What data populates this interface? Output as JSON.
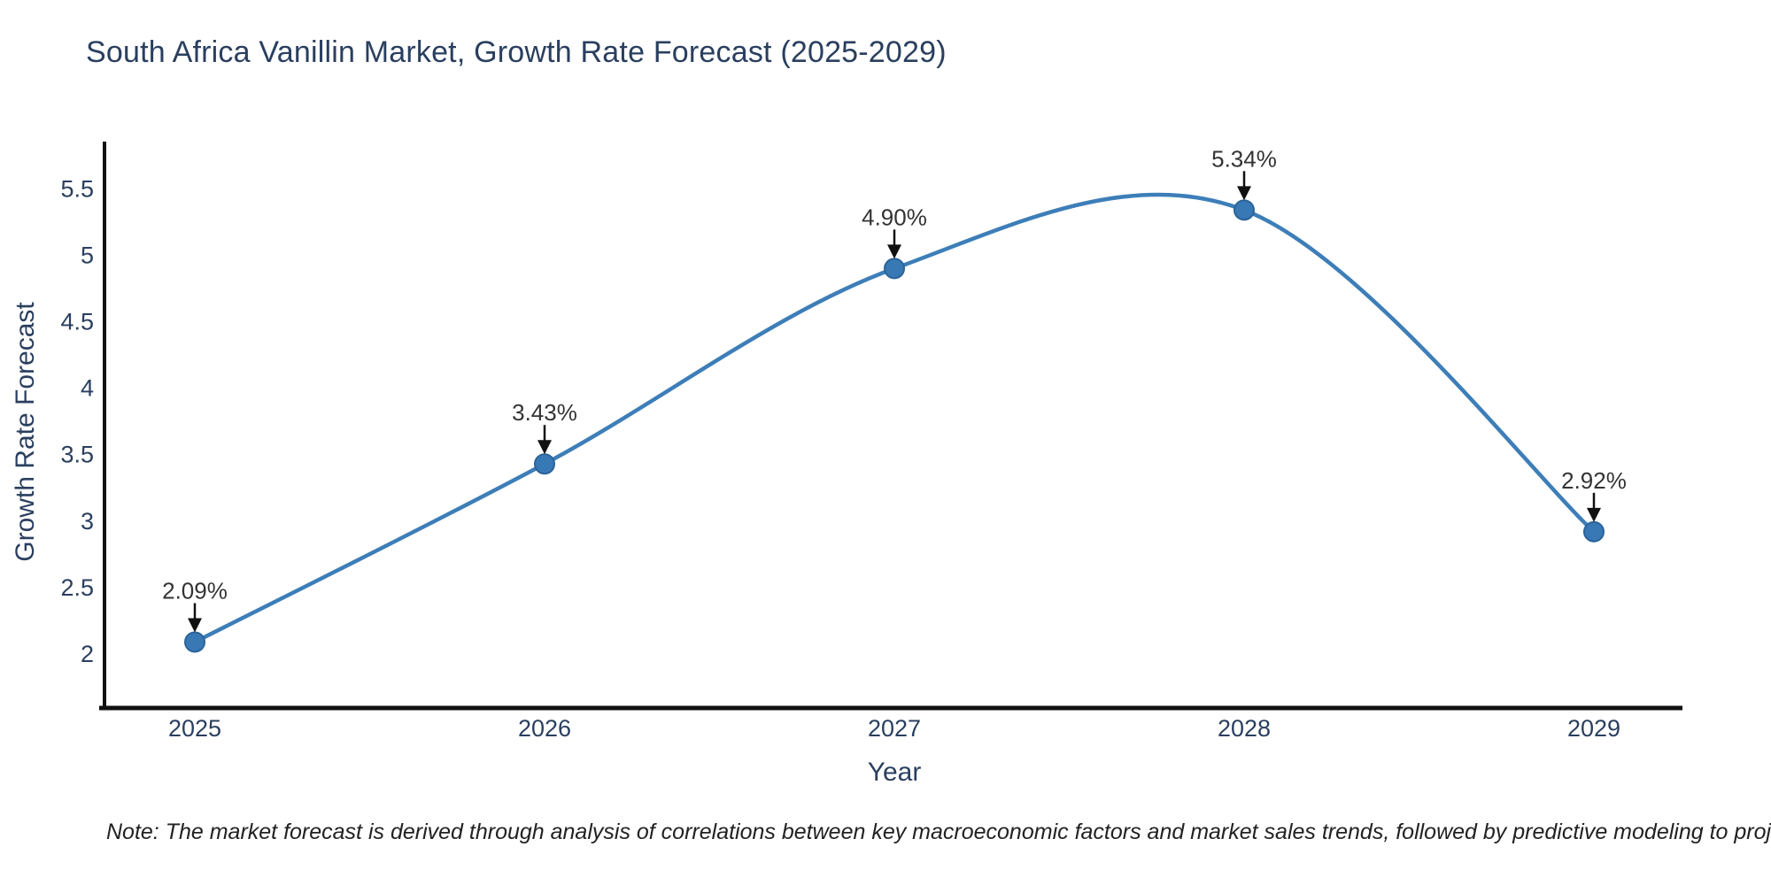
{
  "page": {
    "background": "#ffffff"
  },
  "chart_data": {
    "type": "line",
    "title": "South Africa Vanillin Market, Growth Rate Forecast (2025-2029)",
    "xlabel": "Year",
    "ylabel": "Growth Rate Forecast",
    "x": [
      2025,
      2026,
      2027,
      2028,
      2029
    ],
    "values": [
      2.09,
      3.43,
      4.9,
      5.34,
      2.92
    ],
    "point_labels": [
      "2.09%",
      "3.43%",
      "4.90%",
      "5.34%",
      "2.92%"
    ],
    "xtick_labels": [
      "2025",
      "2026",
      "2027",
      "2028",
      "2029"
    ],
    "ytick_values": [
      2,
      2.5,
      3,
      3.5,
      4,
      4.5,
      5,
      5.5
    ],
    "ytick_labels": [
      "2",
      "2.5",
      "3",
      "3.5",
      "4",
      "4.5",
      "5",
      "5.5"
    ],
    "line_shape": "spline",
    "grid": false,
    "legend": false,
    "ylim": [
      1.59,
      5.87
    ],
    "colors": {
      "line": "#3d7eb8",
      "marker": "#3878b4",
      "marker_edge": "#2b639a",
      "axis": "#111111",
      "axis_text": "#2a3f5f",
      "annotation_text": "#333333",
      "arrow": "#111111"
    }
  },
  "note": "Note: The market forecast is derived through analysis of correlations between key macroeconomic factors and market sales trends, followed by predictive modeling to project future sales"
}
